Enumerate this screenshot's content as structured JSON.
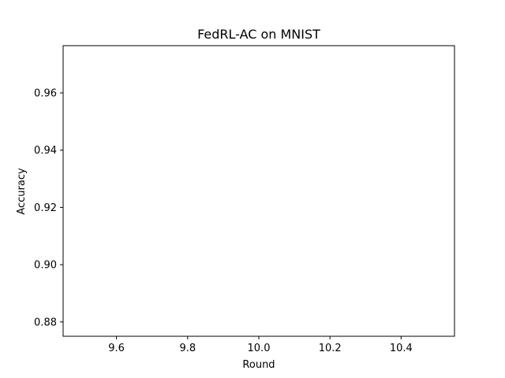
{
  "chart_data": {
    "type": "line",
    "title": "FedRL-AC on MNIST",
    "xlabel": "Round",
    "ylabel": "Accuracy",
    "xlim": [
      9.45,
      10.55
    ],
    "ylim": [
      0.875,
      0.9765
    ],
    "xticks": [
      9.6,
      9.8,
      10.0,
      10.2,
      10.4
    ],
    "xtick_labels": [
      "9.6",
      "9.8",
      "10.0",
      "10.2",
      "10.4"
    ],
    "yticks": [
      0.88,
      0.9,
      0.92,
      0.94,
      0.96
    ],
    "ytick_labels": [
      "0.88",
      "0.90",
      "0.92",
      "0.94",
      "0.96"
    ],
    "grid": false,
    "series": []
  }
}
